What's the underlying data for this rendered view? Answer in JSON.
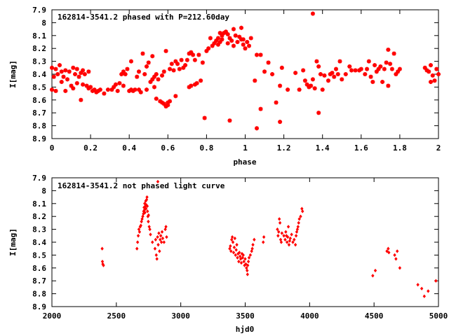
{
  "chart_data": [
    {
      "type": "scatter",
      "title": "162814-3541.2 phased with P=212.60day",
      "xlabel": "phase",
      "ylabel": "I[mag]",
      "xlim": [
        0,
        2
      ],
      "ylim": [
        7.9,
        8.9
      ],
      "y_inverted": true,
      "grid": false,
      "color": "#ff0000",
      "marker": "star",
      "x_ticks": [
        "0",
        "0.2",
        "0.4",
        "0.6",
        "0.8",
        "1",
        "1.2",
        "1.4",
        "1.6",
        "1.8",
        "2"
      ],
      "y_ticks": [
        "7.9",
        "8",
        "8.1",
        "8.2",
        "8.3",
        "8.4",
        "8.5",
        "8.6",
        "8.7",
        "8.8",
        "8.9"
      ],
      "points": [
        [
          0.0,
          8.35
        ],
        [
          0.0,
          8.52
        ],
        [
          0.01,
          8.42
        ],
        [
          0.02,
          8.36
        ],
        [
          0.02,
          8.53
        ],
        [
          0.03,
          8.4
        ],
        [
          0.04,
          8.33
        ],
        [
          0.05,
          8.38
        ],
        [
          0.05,
          8.46
        ],
        [
          0.06,
          8.42
        ],
        [
          0.07,
          8.37
        ],
        [
          0.07,
          8.53
        ],
        [
          0.08,
          8.44
        ],
        [
          0.09,
          8.38
        ],
        [
          0.1,
          8.49
        ],
        [
          0.11,
          8.35
        ],
        [
          0.11,
          8.51
        ],
        [
          0.12,
          8.4
        ],
        [
          0.13,
          8.36
        ],
        [
          0.13,
          8.47
        ],
        [
          0.14,
          8.42
        ],
        [
          0.15,
          8.39
        ],
        [
          0.15,
          8.6
        ],
        [
          0.16,
          8.48
        ],
        [
          0.16,
          8.37
        ],
        [
          0.17,
          8.4
        ],
        [
          0.18,
          8.49
        ],
        [
          0.19,
          8.38
        ],
        [
          0.19,
          8.51
        ],
        [
          0.2,
          8.5
        ],
        [
          0.21,
          8.53
        ],
        [
          0.22,
          8.52
        ],
        [
          0.23,
          8.54
        ],
        [
          0.24,
          8.53
        ],
        [
          0.25,
          8.52
        ],
        [
          0.27,
          8.55
        ],
        [
          0.29,
          8.52
        ],
        [
          0.31,
          8.52
        ],
        [
          0.32,
          8.5
        ],
        [
          0.33,
          8.48
        ],
        [
          0.34,
          8.53
        ],
        [
          0.35,
          8.47
        ],
        [
          0.36,
          8.4
        ],
        [
          0.37,
          8.38
        ],
        [
          0.37,
          8.49
        ],
        [
          0.38,
          8.4
        ],
        [
          0.39,
          8.36
        ],
        [
          0.4,
          8.53
        ],
        [
          0.41,
          8.3
        ],
        [
          0.41,
          8.52
        ],
        [
          0.42,
          8.53
        ],
        [
          0.43,
          8.52
        ],
        [
          0.44,
          8.42
        ],
        [
          0.45,
          8.38
        ],
        [
          0.45,
          8.52
        ],
        [
          0.46,
          8.54
        ],
        [
          0.47,
          8.24
        ],
        [
          0.48,
          8.4
        ],
        [
          0.49,
          8.34
        ],
        [
          0.49,
          8.52
        ],
        [
          0.5,
          8.31
        ],
        [
          0.51,
          8.46
        ],
        [
          0.52,
          8.44
        ],
        [
          0.52,
          8.26
        ],
        [
          0.53,
          8.42
        ],
        [
          0.53,
          8.5
        ],
        [
          0.54,
          8.4
        ],
        [
          0.54,
          8.59
        ],
        [
          0.55,
          8.44
        ],
        [
          0.56,
          8.61
        ],
        [
          0.57,
          8.41
        ],
        [
          0.57,
          8.62
        ],
        [
          0.58,
          8.63
        ],
        [
          0.58,
          8.38
        ],
        [
          0.59,
          8.65
        ],
        [
          0.59,
          8.22
        ],
        [
          0.6,
          8.62
        ],
        [
          0.6,
          8.64
        ],
        [
          0.61,
          8.61
        ],
        [
          0.61,
          8.36
        ],
        [
          0.62,
          8.32
        ],
        [
          0.63,
          8.37
        ],
        [
          0.64,
          8.3
        ],
        [
          0.64,
          8.57
        ],
        [
          0.65,
          8.32
        ],
        [
          0.66,
          8.36
        ],
        [
          0.67,
          8.29
        ],
        [
          0.68,
          8.35
        ],
        [
          0.69,
          8.33
        ],
        [
          0.7,
          8.29
        ],
        [
          0.71,
          8.5
        ],
        [
          0.71,
          8.24
        ],
        [
          0.72,
          8.23
        ],
        [
          0.72,
          8.49
        ],
        [
          0.73,
          8.25
        ],
        [
          0.74,
          8.48
        ],
        [
          0.74,
          8.29
        ],
        [
          0.75,
          8.47
        ],
        [
          0.76,
          8.25
        ],
        [
          0.77,
          8.45
        ],
        [
          0.78,
          8.31
        ],
        [
          0.79,
          8.74
        ],
        [
          0.8,
          8.22
        ],
        [
          0.81,
          8.2
        ],
        [
          0.82,
          8.12
        ],
        [
          0.83,
          8.18
        ],
        [
          0.84,
          8.16
        ],
        [
          0.85,
          8.14
        ],
        [
          0.86,
          8.17
        ],
        [
          0.86,
          8.12
        ],
        [
          0.87,
          8.08
        ],
        [
          0.87,
          8.15
        ],
        [
          0.88,
          8.1
        ],
        [
          0.88,
          8.13
        ],
        [
          0.89,
          8.08
        ],
        [
          0.9,
          8.07
        ],
        [
          0.91,
          8.16
        ],
        [
          0.91,
          8.09
        ],
        [
          0.92,
          8.76
        ],
        [
          0.92,
          8.12
        ],
        [
          0.93,
          8.14
        ],
        [
          0.94,
          8.05
        ],
        [
          0.94,
          8.18
        ],
        [
          0.95,
          8.1
        ],
        [
          0.96,
          8.15
        ],
        [
          0.97,
          8.11
        ],
        [
          0.98,
          8.13
        ],
        [
          0.98,
          8.04
        ],
        [
          0.99,
          8.17
        ],
        [
          0.99,
          8.13
        ],
        [
          1.0,
          8.2
        ],
        [
          1.01,
          8.15
        ],
        [
          1.02,
          8.18
        ],
        [
          1.03,
          8.12
        ],
        [
          1.05,
          8.45
        ],
        [
          1.06,
          8.25
        ],
        [
          1.06,
          8.82
        ],
        [
          1.08,
          8.67
        ],
        [
          1.08,
          8.25
        ],
        [
          1.1,
          8.38
        ],
        [
          1.12,
          8.31
        ],
        [
          1.14,
          8.4
        ],
        [
          1.16,
          8.62
        ],
        [
          1.18,
          8.77
        ],
        [
          1.18,
          8.49
        ],
        [
          1.19,
          8.35
        ],
        [
          1.22,
          8.52
        ],
        [
          1.26,
          8.39
        ],
        [
          1.28,
          8.52
        ],
        [
          1.3,
          8.37
        ],
        [
          1.31,
          8.45
        ],
        [
          1.32,
          8.48
        ],
        [
          1.33,
          8.5
        ],
        [
          1.34,
          8.49
        ],
        [
          1.35,
          7.93
        ],
        [
          1.35,
          8.44
        ],
        [
          1.36,
          8.51
        ],
        [
          1.37,
          8.3
        ],
        [
          1.38,
          8.34
        ],
        [
          1.38,
          8.7
        ],
        [
          1.39,
          8.4
        ],
        [
          1.4,
          8.52
        ],
        [
          1.41,
          8.41
        ],
        [
          1.43,
          8.45
        ],
        [
          1.44,
          8.4
        ],
        [
          1.45,
          8.39
        ],
        [
          1.46,
          8.42
        ],
        [
          1.47,
          8.36
        ],
        [
          1.48,
          8.4
        ],
        [
          1.49,
          8.3
        ],
        [
          1.5,
          8.44
        ],
        [
          1.52,
          8.4
        ],
        [
          1.54,
          8.34
        ],
        [
          1.55,
          8.37
        ],
        [
          1.57,
          8.37
        ],
        [
          1.59,
          8.37
        ],
        [
          1.6,
          8.36
        ],
        [
          1.62,
          8.4
        ],
        [
          1.63,
          8.36
        ],
        [
          1.64,
          8.3
        ],
        [
          1.65,
          8.42
        ],
        [
          1.66,
          8.46
        ],
        [
          1.67,
          8.33
        ],
        [
          1.68,
          8.38
        ],
        [
          1.69,
          8.36
        ],
        [
          1.7,
          8.34
        ],
        [
          1.71,
          8.46
        ],
        [
          1.72,
          8.36
        ],
        [
          1.73,
          8.31
        ],
        [
          1.74,
          8.49
        ],
        [
          1.74,
          8.21
        ],
        [
          1.75,
          8.32
        ],
        [
          1.76,
          8.36
        ],
        [
          1.77,
          8.24
        ],
        [
          1.78,
          8.4
        ],
        [
          1.79,
          8.38
        ],
        [
          1.8,
          8.36
        ],
        [
          1.93,
          8.35
        ],
        [
          1.94,
          8.37
        ],
        [
          1.95,
          8.38
        ],
        [
          1.96,
          8.33
        ],
        [
          1.96,
          8.46
        ],
        [
          1.97,
          8.41
        ],
        [
          1.98,
          8.45
        ],
        [
          1.99,
          8.36
        ],
        [
          2.0,
          8.4
        ]
      ]
    },
    {
      "type": "scatter",
      "title": "162814-3541.2 not phased light curve",
      "xlabel": "hjd0",
      "ylabel": "I[mag]",
      "xlim": [
        2000,
        5000
      ],
      "ylim": [
        7.9,
        8.9
      ],
      "y_inverted": true,
      "grid": false,
      "color": "#ff0000",
      "marker": "diamond",
      "x_ticks": [
        "2000",
        "2500",
        "3000",
        "3500",
        "4000",
        "4500",
        "5000"
      ],
      "y_ticks": [
        "7.9",
        "8",
        "8.1",
        "8.2",
        "8.3",
        "8.4",
        "8.5",
        "8.6",
        "8.7",
        "8.8",
        "8.9"
      ],
      "points": [
        [
          2390,
          8.45
        ],
        [
          2392,
          8.55
        ],
        [
          2395,
          8.57
        ],
        [
          2400,
          8.58
        ],
        [
          2660,
          8.45
        ],
        [
          2665,
          8.4
        ],
        [
          2670,
          8.35
        ],
        [
          2675,
          8.3
        ],
        [
          2680,
          8.32
        ],
        [
          2685,
          8.28
        ],
        [
          2690,
          8.27
        ],
        [
          2695,
          8.24
        ],
        [
          2700,
          8.22
        ],
        [
          2705,
          8.2
        ],
        [
          2710,
          8.18
        ],
        [
          2712,
          8.16
        ],
        [
          2715,
          8.13
        ],
        [
          2718,
          8.15
        ],
        [
          2720,
          8.1
        ],
        [
          2722,
          8.17
        ],
        [
          2725,
          8.12
        ],
        [
          2728,
          8.08
        ],
        [
          2730,
          8.14
        ],
        [
          2732,
          8.11
        ],
        [
          2735,
          8.07
        ],
        [
          2738,
          8.05
        ],
        [
          2740,
          8.12
        ],
        [
          2742,
          8.16
        ],
        [
          2745,
          8.2
        ],
        [
          2748,
          8.24
        ],
        [
          2750,
          8.19
        ],
        [
          2755,
          8.28
        ],
        [
          2760,
          8.3
        ],
        [
          2765,
          8.34
        ],
        [
          2780,
          8.4
        ],
        [
          2800,
          8.45
        ],
        [
          2805,
          8.38
        ],
        [
          2810,
          8.5
        ],
        [
          2815,
          8.53
        ],
        [
          2820,
          8.36
        ],
        [
          2825,
          8.42
        ],
        [
          2830,
          8.33
        ],
        [
          2835,
          8.47
        ],
        [
          2840,
          8.38
        ],
        [
          2845,
          8.35
        ],
        [
          2850,
          8.4
        ],
        [
          2855,
          8.32
        ],
        [
          2860,
          8.37
        ],
        [
          2870,
          8.4
        ],
        [
          2880,
          8.3
        ],
        [
          2885,
          8.28
        ],
        [
          2890,
          8.36
        ],
        [
          2822,
          7.93
        ],
        [
          3380,
          8.45
        ],
        [
          3385,
          8.43
        ],
        [
          3390,
          8.47
        ],
        [
          3395,
          8.38
        ],
        [
          3400,
          8.36
        ],
        [
          3405,
          8.4
        ],
        [
          3410,
          8.48
        ],
        [
          3415,
          8.44
        ],
        [
          3420,
          8.37
        ],
        [
          3425,
          8.5
        ],
        [
          3430,
          8.46
        ],
        [
          3435,
          8.42
        ],
        [
          3440,
          8.52
        ],
        [
          3445,
          8.49
        ],
        [
          3450,
          8.55
        ],
        [
          3455,
          8.48
        ],
        [
          3460,
          8.51
        ],
        [
          3465,
          8.53
        ],
        [
          3470,
          8.56
        ],
        [
          3475,
          8.49
        ],
        [
          3480,
          8.52
        ],
        [
          3485,
          8.5
        ],
        [
          3490,
          8.55
        ],
        [
          3495,
          8.58
        ],
        [
          3500,
          8.53
        ],
        [
          3505,
          8.57
        ],
        [
          3510,
          8.6
        ],
        [
          3515,
          8.62
        ],
        [
          3518,
          8.65
        ],
        [
          3520,
          8.58
        ],
        [
          3525,
          8.55
        ],
        [
          3530,
          8.52
        ],
        [
          3540,
          8.5
        ],
        [
          3550,
          8.47
        ],
        [
          3555,
          8.45
        ],
        [
          3560,
          8.42
        ],
        [
          3570,
          8.38
        ],
        [
          3640,
          8.4
        ],
        [
          3645,
          8.36
        ],
        [
          3750,
          8.3
        ],
        [
          3755,
          8.35
        ],
        [
          3760,
          8.32
        ],
        [
          3765,
          8.22
        ],
        [
          3770,
          8.25
        ],
        [
          3775,
          8.38
        ],
        [
          3780,
          8.4
        ],
        [
          3785,
          8.33
        ],
        [
          3800,
          8.35
        ],
        [
          3810,
          8.38
        ],
        [
          3815,
          8.32
        ],
        [
          3820,
          8.35
        ],
        [
          3825,
          8.4
        ],
        [
          3830,
          8.36
        ],
        [
          3835,
          8.28
        ],
        [
          3840,
          8.42
        ],
        [
          3845,
          8.39
        ],
        [
          3850,
          8.37
        ],
        [
          3860,
          8.34
        ],
        [
          3870,
          8.4
        ],
        [
          3880,
          8.38
        ],
        [
          3890,
          8.42
        ],
        [
          3895,
          8.35
        ],
        [
          3900,
          8.32
        ],
        [
          3905,
          8.3
        ],
        [
          3910,
          8.28
        ],
        [
          3915,
          8.25
        ],
        [
          3920,
          8.22
        ],
        [
          3930,
          8.2
        ],
        [
          3940,
          8.14
        ],
        [
          3945,
          8.16
        ],
        [
          4490,
          8.66
        ],
        [
          4510,
          8.62
        ],
        [
          4600,
          8.47
        ],
        [
          4610,
          8.45
        ],
        [
          4615,
          8.48
        ],
        [
          4660,
          8.5
        ],
        [
          4670,
          8.53
        ],
        [
          4680,
          8.47
        ],
        [
          4700,
          8.6
        ],
        [
          4840,
          8.73
        ],
        [
          4870,
          8.76
        ],
        [
          4890,
          8.82
        ],
        [
          4920,
          8.78
        ],
        [
          4980,
          8.7
        ]
      ]
    }
  ]
}
